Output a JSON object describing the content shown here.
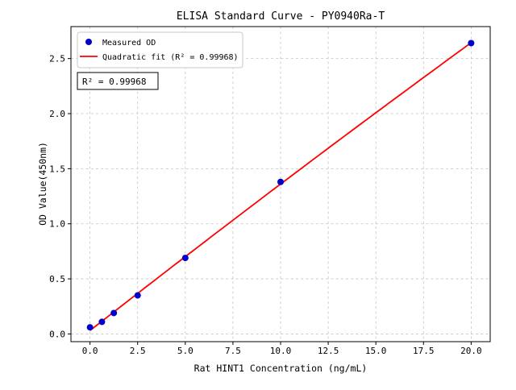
{
  "chart_data": {
    "type": "scatter",
    "title": "ELISA Standard Curve - PY0940Ra-T",
    "xlabel": "Rat HINT1 Concentration (ng/mL)",
    "ylabel": "OD Value(450nm)",
    "xlim": [
      -1.0,
      21.0
    ],
    "ylim": [
      -0.07,
      2.79
    ],
    "x_ticks": [
      0,
      2.5,
      5,
      7.5,
      10,
      12.5,
      15,
      17.5,
      20
    ],
    "y_ticks": [
      0,
      0.5,
      1,
      1.5,
      2,
      2.5
    ],
    "grid": "dashed",
    "r_squared": 0.99968,
    "annotation": {
      "text": "R² = 0.99968"
    },
    "legend": {
      "position": "upper-left",
      "entries": [
        {
          "label": "Measured OD",
          "marker": "dot"
        },
        {
          "label": "Quadratic fit (R² = 0.99968)",
          "marker": "line"
        }
      ]
    },
    "series": [
      {
        "name": "Measured OD",
        "type": "scatter",
        "color": "#0000cd",
        "x": [
          0,
          0.625,
          1.25,
          2.5,
          5,
          10,
          20
        ],
        "y": [
          0.06,
          0.11,
          0.19,
          0.35,
          0.69,
          1.38,
          2.64
        ]
      },
      {
        "name": "Quadratic fit",
        "type": "line",
        "color": "#ff0000",
        "fit": "quadratic-least-squares-of-measured"
      }
    ]
  }
}
